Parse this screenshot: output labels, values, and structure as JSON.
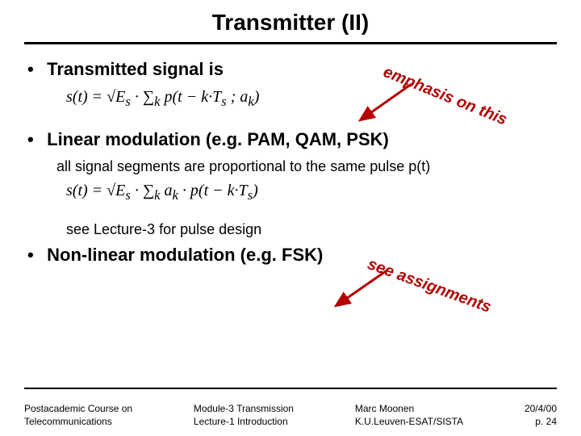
{
  "title": "Transmitter (II)",
  "bullets": {
    "b1": "Transmitted signal is",
    "b2": "Linear modulation (e.g. PAM, QAM, PSK)",
    "b2_sub": "all signal segments are proportional to the same pulse p(t)",
    "b2_note": "see Lecture-3 for pulse design",
    "b3": "Non-linear modulation (e.g. FSK)"
  },
  "equations": {
    "eq1_html": "s(t) = √E<sub>s</sub> · ∑<sub>k</sub> p(t − k·T<sub>s</sub> ; a<sub>k</sub>)",
    "eq2_html": "s(t) = √E<sub>s</sub> · ∑<sub>k</sub> a<sub>k</sub> · p(t − k·T<sub>s</sub>)"
  },
  "callouts": {
    "c1": "emphasis on this",
    "c2": "see assignments"
  },
  "footer": {
    "col1": "Postacademic Course on\nTelecommunications",
    "col2": "Module-3  Transmission\nLecture-1  Introduction",
    "col3": "Marc Moonen\nK.U.Leuven-ESAT/SISTA",
    "col4": "20/4/00\np. 24"
  },
  "colors": {
    "accent": "#b30000",
    "text": "#000000",
    "bg": "#ffffff"
  },
  "typography": {
    "title_fontsize": 28,
    "bullet_fontsize": 22,
    "sub_fontsize": 18,
    "footer_fontsize": 12
  }
}
